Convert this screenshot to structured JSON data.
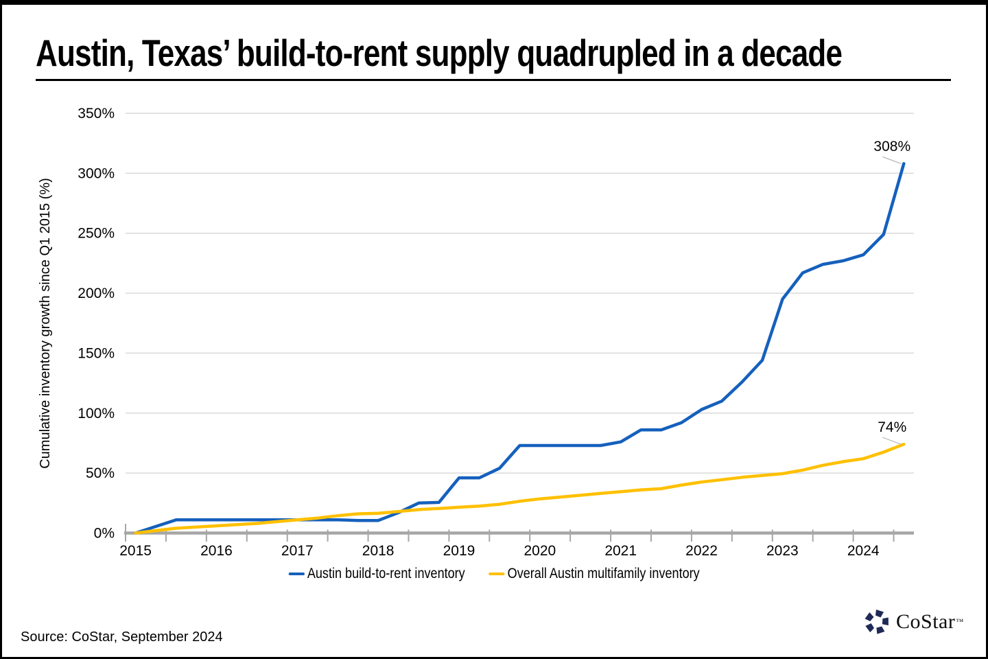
{
  "chart_data": {
    "type": "line",
    "title": "Austin, Texas’ build-to-rent supply quadrupled in a decade",
    "ylabel": "Cumulative inventory growth since Q1 2015 (%)",
    "ylim": [
      0,
      350
    ],
    "ytick_interval": 50,
    "ytick_labels": [
      "0%",
      "50%",
      "100%",
      "150%",
      "200%",
      "250%",
      "300%",
      "350%"
    ],
    "x_year_labels": [
      "2015",
      "2016",
      "2017",
      "2018",
      "2019",
      "2020",
      "2021",
      "2022",
      "2023",
      "2024"
    ],
    "x_start_year": 2015,
    "points_per_year": 4,
    "grid": "horizontal",
    "legend_position": "bottom",
    "series": [
      {
        "name": "Austin build-to-rent inventory",
        "color": "#1560BD",
        "end_label": "308%",
        "values": [
          0,
          5.5,
          11,
          11,
          11,
          11,
          11,
          11,
          11,
          11,
          11,
          10.5,
          10.5,
          17,
          25,
          25.5,
          46,
          46,
          54,
          73,
          73,
          73,
          73,
          73,
          76,
          86,
          86,
          92,
          103,
          110,
          126,
          144,
          195,
          217,
          224,
          227,
          232,
          249,
          308
        ]
      },
      {
        "name": "Overall Austin multifamily inventory",
        "color": "#FFC000",
        "end_label": "74%",
        "values": [
          0,
          2,
          4,
          5,
          6,
          7,
          8,
          9.5,
          11,
          12.5,
          14.5,
          16,
          16.5,
          18,
          19.5,
          20.5,
          21.5,
          22.5,
          24,
          26.5,
          28.5,
          30,
          31.5,
          33,
          34.5,
          36,
          37,
          40,
          42.5,
          44.5,
          46.5,
          48,
          49.5,
          52.5,
          56.5,
          59.5,
          62,
          67.5,
          74
        ]
      }
    ]
  },
  "source": {
    "text": "Source: CoStar, September 2024"
  },
  "logo": {
    "text": "CoStar",
    "tm": "™"
  },
  "colors": {
    "axis": "#A6A6A6",
    "gridline": "#D9D9D9",
    "leader": "#A6A6A6",
    "frame": "#000000",
    "title_text": "#000000"
  }
}
